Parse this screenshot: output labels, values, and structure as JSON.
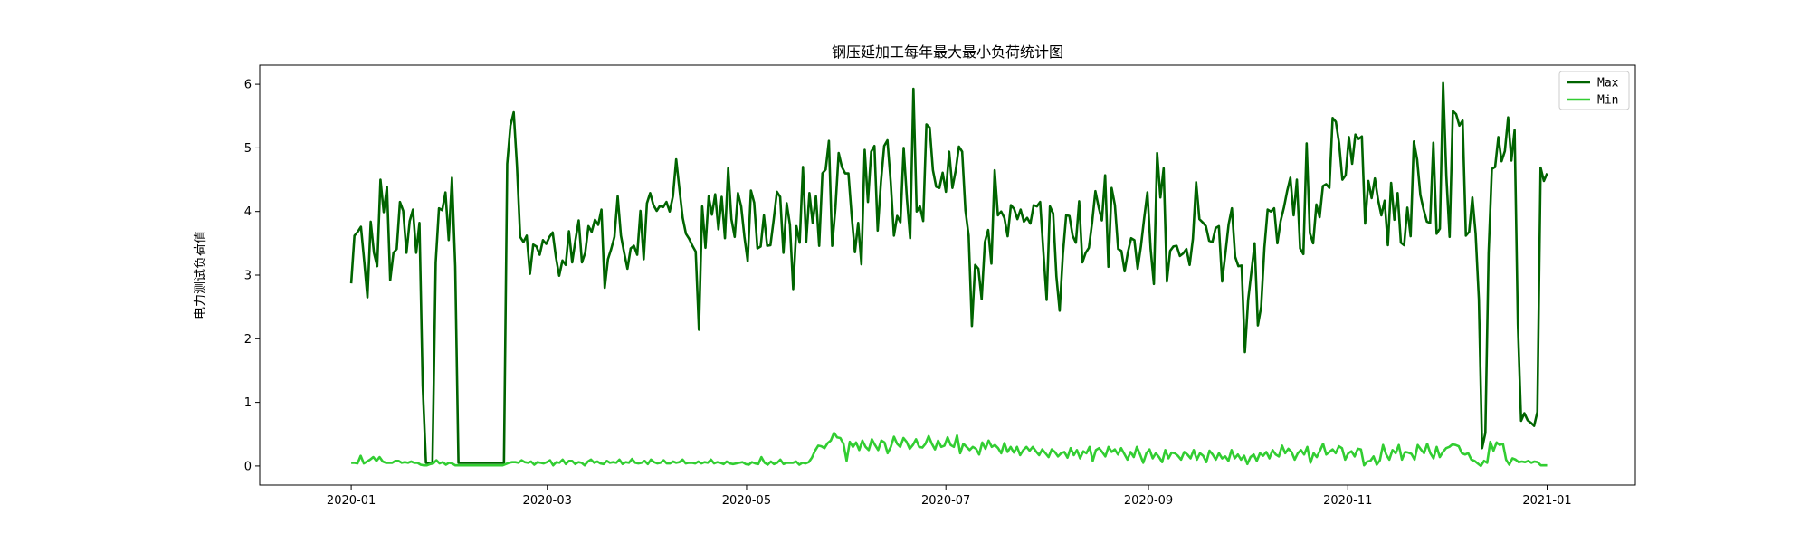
{
  "chart_data": {
    "type": "line",
    "title": "钢压延加工每年最大最小负荷统计图",
    "xlabel": "",
    "ylabel": "电力测试负荷值",
    "x_start": "2020-01-01",
    "x_end": "2021-01-01",
    "xlim": [
      "2019-12-04",
      "2021-01-28"
    ],
    "ylim": [
      -0.3,
      6.3
    ],
    "x_ticks": [
      "2020-01",
      "2020-03",
      "2020-05",
      "2020-07",
      "2020-09",
      "2020-11",
      "2021-01"
    ],
    "y_ticks": [
      "0",
      "1",
      "2",
      "3",
      "4",
      "5",
      "6"
    ],
    "grid": false,
    "legend_position": "upper-right",
    "series": [
      {
        "name": "Max",
        "color": "#006400",
        "values": [
          2.87,
          3.62,
          3.68,
          3.76,
          3.22,
          2.65,
          3.84,
          3.35,
          3.14,
          4.5,
          3.99,
          4.39,
          2.92,
          3.35,
          3.41,
          4.15,
          4.01,
          3.35,
          3.85,
          4.03,
          3.35,
          3.82,
          1.26,
          0.05,
          0.05,
          0.05,
          3.2,
          4.05,
          4.02,
          4.3,
          3.55,
          4.53,
          3.14,
          0.05,
          0.05,
          0.05,
          0.05,
          0.05,
          0.05,
          0.05,
          0.05,
          0.05,
          0.05,
          0.05,
          0.05,
          0.05,
          0.05,
          0.05,
          4.75,
          5.35,
          5.56,
          4.72,
          3.6,
          3.52,
          3.62,
          3.02,
          3.48,
          3.45,
          3.32,
          3.55,
          3.49,
          3.6,
          3.67,
          3.28,
          2.99,
          3.23,
          3.16,
          3.69,
          3.2,
          3.55,
          3.86,
          3.2,
          3.35,
          3.77,
          3.68,
          3.87,
          3.79,
          4.03,
          2.8,
          3.25,
          3.41,
          3.6,
          4.24,
          3.62,
          3.35,
          3.1,
          3.42,
          3.46,
          3.32,
          4.01,
          3.25,
          4.13,
          4.29,
          4.1,
          4.01,
          4.09,
          4.07,
          4.15,
          4.0,
          4.24,
          4.82,
          4.35,
          3.9,
          3.65,
          3.57,
          3.46,
          3.37,
          2.14,
          4.08,
          3.43,
          4.24,
          3.95,
          4.27,
          3.72,
          4.23,
          3.58,
          4.68,
          3.88,
          3.6,
          4.29,
          4.08,
          3.6,
          3.22,
          4.33,
          4.14,
          3.42,
          3.45,
          3.94,
          3.46,
          3.47,
          3.87,
          4.31,
          4.23,
          3.35,
          4.13,
          3.79,
          2.78,
          3.77,
          3.51,
          4.7,
          3.52,
          4.29,
          3.82,
          4.24,
          3.46,
          4.6,
          4.66,
          5.11,
          3.46,
          4.06,
          4.92,
          4.7,
          4.6,
          4.6,
          3.93,
          3.36,
          3.82,
          3.17,
          4.97,
          4.15,
          4.94,
          5.03,
          3.7,
          4.46,
          5.03,
          5.12,
          4.47,
          3.62,
          3.93,
          3.83,
          5.0,
          4.2,
          3.58,
          5.93,
          4.0,
          4.08,
          3.85,
          5.37,
          5.32,
          4.65,
          4.39,
          4.37,
          4.61,
          4.31,
          4.94,
          4.37,
          4.64,
          5.02,
          4.94,
          4.02,
          3.62,
          2.2,
          3.16,
          3.1,
          2.62,
          3.52,
          3.71,
          3.18,
          4.65,
          3.94,
          4.0,
          3.9,
          3.61,
          4.1,
          4.04,
          3.88,
          4.03,
          3.84,
          3.9,
          3.81,
          4.1,
          4.08,
          4.15,
          3.36,
          2.61,
          4.08,
          3.97,
          2.98,
          2.44,
          3.33,
          3.94,
          3.93,
          3.62,
          3.51,
          4.16,
          3.2,
          3.35,
          3.43,
          3.83,
          4.32,
          4.07,
          3.86,
          4.57,
          3.13,
          4.37,
          4.1,
          3.41,
          3.38,
          3.06,
          3.36,
          3.58,
          3.55,
          3.1,
          3.45,
          3.89,
          4.3,
          3.41,
          2.86,
          4.92,
          4.22,
          4.68,
          2.9,
          3.38,
          3.45,
          3.46,
          3.3,
          3.34,
          3.41,
          3.16,
          3.57,
          4.46,
          3.88,
          3.83,
          3.77,
          3.54,
          3.52,
          3.74,
          3.77,
          2.9,
          3.34,
          3.8,
          4.05,
          3.29,
          3.14,
          3.15,
          1.79,
          2.61,
          3.05,
          3.5,
          2.21,
          2.5,
          3.43,
          4.03,
          4.0,
          4.05,
          3.5,
          3.85,
          4.06,
          4.32,
          4.53,
          3.94,
          4.5,
          3.42,
          3.33,
          5.07,
          3.66,
          3.5,
          4.11,
          3.91,
          4.4,
          4.43,
          4.37,
          5.47,
          5.41,
          5.07,
          4.5,
          4.57,
          5.17,
          4.75,
          5.21,
          5.14,
          5.18,
          3.81,
          4.48,
          4.21,
          4.52,
          4.18,
          3.94,
          4.17,
          3.47,
          4.45,
          3.87,
          4.29,
          3.51,
          3.47,
          4.06,
          3.61,
          5.1,
          4.82,
          4.26,
          4.03,
          3.84,
          3.82,
          5.08,
          3.65,
          3.73,
          6.02,
          4.55,
          3.6,
          5.58,
          5.53,
          5.35,
          5.43,
          3.62,
          3.68,
          4.22,
          3.65,
          2.62,
          0.28,
          0.52,
          3.35,
          4.67,
          4.7,
          5.17,
          4.79,
          4.95,
          5.48,
          4.8,
          5.28,
          2.23,
          0.71,
          0.83,
          0.72,
          0.68,
          0.63,
          0.85,
          4.69,
          4.48,
          4.6
        ]
      },
      {
        "name": "Min",
        "color": "#32cd32",
        "values": [
          0.05,
          0.05,
          0.04,
          0.16,
          0.04,
          0.07,
          0.1,
          0.14,
          0.08,
          0.14,
          0.07,
          0.05,
          0.05,
          0.05,
          0.08,
          0.08,
          0.05,
          0.06,
          0.05,
          0.07,
          0.05,
          0.05,
          0.02,
          0.01,
          0.01,
          0.03,
          0.04,
          0.09,
          0.04,
          0.06,
          0.02,
          0.05,
          0.04,
          0.01,
          0.01,
          0.01,
          0.01,
          0.01,
          0.01,
          0.01,
          0.01,
          0.01,
          0.01,
          0.01,
          0.01,
          0.01,
          0.01,
          0.01,
          0.01,
          0.03,
          0.05,
          0.06,
          0.06,
          0.05,
          0.09,
          0.06,
          0.05,
          0.07,
          0.02,
          0.06,
          0.05,
          0.04,
          0.06,
          0.09,
          0.01,
          0.06,
          0.05,
          0.1,
          0.03,
          0.08,
          0.08,
          0.03,
          0.06,
          0.05,
          0.01,
          0.07,
          0.1,
          0.05,
          0.07,
          0.04,
          0.03,
          0.08,
          0.05,
          0.06,
          0.05,
          0.1,
          0.03,
          0.06,
          0.05,
          0.11,
          0.05,
          0.04,
          0.05,
          0.08,
          0.03,
          0.1,
          0.06,
          0.04,
          0.05,
          0.09,
          0.04,
          0.04,
          0.07,
          0.05,
          0.06,
          0.1,
          0.04,
          0.05,
          0.05,
          0.04,
          0.07,
          0.04,
          0.06,
          0.05,
          0.1,
          0.04,
          0.06,
          0.05,
          0.03,
          0.07,
          0.04,
          0.03,
          0.04,
          0.05,
          0.06,
          0.03,
          0.02,
          0.06,
          0.04,
          0.03,
          0.14,
          0.05,
          0.02,
          0.07,
          0.03,
          0.05,
          0.1,
          0.03,
          0.05,
          0.05,
          0.05,
          0.07,
          0.02,
          0.05,
          0.04,
          0.06,
          0.13,
          0.24,
          0.32,
          0.31,
          0.28,
          0.36,
          0.4,
          0.52,
          0.45,
          0.44,
          0.35,
          0.08,
          0.38,
          0.3,
          0.37,
          0.25,
          0.4,
          0.3,
          0.25,
          0.42,
          0.33,
          0.25,
          0.4,
          0.37,
          0.2,
          0.3,
          0.46,
          0.35,
          0.3,
          0.44,
          0.38,
          0.27,
          0.33,
          0.42,
          0.3,
          0.29,
          0.35,
          0.47,
          0.35,
          0.26,
          0.4,
          0.3,
          0.32,
          0.45,
          0.33,
          0.3,
          0.48,
          0.2,
          0.35,
          0.3,
          0.25,
          0.3,
          0.27,
          0.18,
          0.37,
          0.27,
          0.4,
          0.3,
          0.33,
          0.28,
          0.2,
          0.36,
          0.22,
          0.3,
          0.21,
          0.3,
          0.17,
          0.25,
          0.3,
          0.24,
          0.3,
          0.23,
          0.17,
          0.26,
          0.2,
          0.14,
          0.26,
          0.22,
          0.15,
          0.2,
          0.22,
          0.13,
          0.28,
          0.17,
          0.25,
          0.12,
          0.23,
          0.2,
          0.3,
          0.08,
          0.25,
          0.28,
          0.22,
          0.15,
          0.3,
          0.22,
          0.26,
          0.18,
          0.28,
          0.19,
          0.1,
          0.22,
          0.14,
          0.3,
          0.18,
          0.05,
          0.2,
          0.26,
          0.12,
          0.2,
          0.14,
          0.06,
          0.25,
          0.12,
          0.21,
          0.2,
          0.16,
          0.1,
          0.22,
          0.18,
          0.12,
          0.25,
          0.1,
          0.2,
          0.16,
          0.06,
          0.24,
          0.18,
          0.1,
          0.2,
          0.12,
          0.15,
          0.08,
          0.25,
          0.12,
          0.18,
          0.1,
          0.16,
          0.03,
          0.14,
          0.18,
          0.08,
          0.2,
          0.16,
          0.22,
          0.12,
          0.25,
          0.18,
          0.15,
          0.32,
          0.2,
          0.27,
          0.22,
          0.1,
          0.2,
          0.25,
          0.18,
          0.3,
          0.05,
          0.2,
          0.14,
          0.24,
          0.35,
          0.18,
          0.22,
          0.26,
          0.2,
          0.31,
          0.28,
          0.1,
          0.2,
          0.23,
          0.15,
          0.27,
          0.26,
          0.01,
          0.07,
          0.08,
          0.15,
          0.02,
          0.09,
          0.33,
          0.18,
          0.1,
          0.25,
          0.2,
          0.33,
          0.1,
          0.22,
          0.21,
          0.19,
          0.1,
          0.33,
          0.26,
          0.2,
          0.35,
          0.2,
          0.12,
          0.3,
          0.14,
          0.22,
          0.28,
          0.3,
          0.34,
          0.33,
          0.31,
          0.2,
          0.18,
          0.2,
          0.1,
          0.08,
          0.04,
          0.0,
          0.08,
          0.05,
          0.38,
          0.24,
          0.37,
          0.33,
          0.35,
          0.1,
          0.02,
          0.12,
          0.1,
          0.06,
          0.07,
          0.06,
          0.08,
          0.05,
          0.07,
          0.06,
          0.01,
          0.01,
          0.01
        ]
      }
    ]
  }
}
